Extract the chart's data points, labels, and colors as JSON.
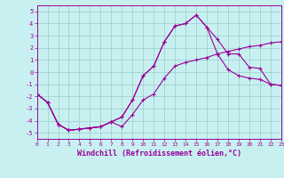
{
  "xlabel": "Windchill (Refroidissement éolien,°C)",
  "xlim": [
    0,
    23
  ],
  "ylim": [
    -5.5,
    5.5
  ],
  "yticks": [
    -5,
    -4,
    -3,
    -2,
    -1,
    0,
    1,
    2,
    3,
    4,
    5
  ],
  "xticks": [
    0,
    1,
    2,
    3,
    4,
    5,
    6,
    7,
    8,
    9,
    10,
    11,
    12,
    13,
    14,
    15,
    16,
    17,
    18,
    19,
    20,
    21,
    22,
    23
  ],
  "bg_color": "#c8f0f0",
  "line_color": "#990099",
  "grid_color": "#99cccc",
  "line1_x": [
    0,
    1,
    2,
    3,
    4,
    5,
    6,
    7,
    8,
    9,
    10,
    11,
    12,
    13,
    14,
    15,
    16,
    17,
    18,
    19,
    20,
    21,
    22,
    23
  ],
  "line1_y": [
    -1.8,
    -2.5,
    -4.3,
    -4.8,
    -4.7,
    -4.6,
    -4.5,
    -4.1,
    -3.7,
    -2.3,
    -0.3,
    0.5,
    2.5,
    3.8,
    4.0,
    4.7,
    3.7,
    2.7,
    1.5,
    1.5,
    0.4,
    0.3,
    -1.0,
    -1.1
  ],
  "line2_x": [
    0,
    1,
    2,
    3,
    4,
    5,
    6,
    7,
    8,
    9,
    10,
    11,
    12,
    13,
    14,
    15,
    16,
    17,
    18,
    19,
    20,
    21,
    22,
    23
  ],
  "line2_y": [
    -1.8,
    -2.5,
    -4.3,
    -4.8,
    -4.7,
    -4.6,
    -4.5,
    -4.1,
    -4.5,
    -3.5,
    -2.3,
    -1.8,
    -0.5,
    0.5,
    0.8,
    1.0,
    1.2,
    1.5,
    1.7,
    1.9,
    2.1,
    2.2,
    2.4,
    2.5
  ],
  "line3_x": [
    0,
    1,
    2,
    3,
    4,
    5,
    6,
    7,
    8,
    9,
    10,
    11,
    12,
    13,
    14,
    15,
    16,
    17,
    18,
    19,
    20,
    21,
    22,
    23
  ],
  "line3_y": [
    -1.8,
    -2.5,
    -4.3,
    -4.8,
    -4.7,
    -4.6,
    -4.5,
    -4.1,
    -3.7,
    -2.3,
    -0.3,
    0.5,
    2.5,
    3.8,
    4.0,
    4.7,
    3.7,
    1.5,
    0.2,
    -0.3,
    -0.5,
    -0.6,
    -1.0,
    -1.1
  ]
}
